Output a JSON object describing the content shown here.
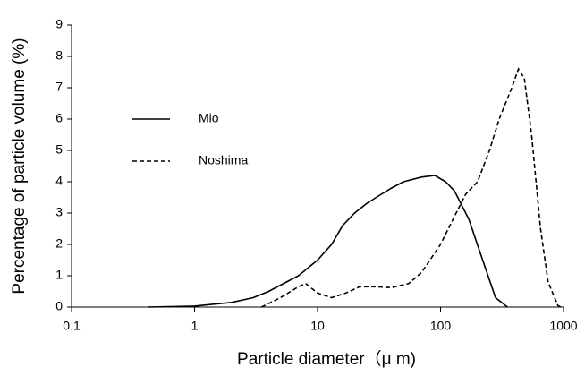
{
  "chart_data": {
    "type": "line",
    "x_label": "Particle diameter（μ m)",
    "y_label": "Percentage of particle volume (%)",
    "xlim": [
      0.1,
      1000
    ],
    "xticks": [
      0.1,
      1,
      10,
      100,
      1000
    ],
    "x_log": true,
    "ylim": [
      0,
      9
    ],
    "yticks": [
      0,
      1,
      2,
      3,
      4,
      5,
      6,
      7,
      8,
      9
    ],
    "grid": false,
    "legend": "upper left",
    "series": [
      {
        "name": "Mio",
        "color": "#000000",
        "line_style": "solid",
        "x": [
          0.42,
          1,
          2,
          3,
          4,
          5,
          7,
          10,
          13,
          16,
          20,
          25,
          30,
          40,
          50,
          70,
          90,
          110,
          130,
          170,
          220,
          280,
          350
        ],
        "values": [
          0,
          0.03,
          0.15,
          0.3,
          0.5,
          0.7,
          1.0,
          1.5,
          2.0,
          2.6,
          3.0,
          3.3,
          3.5,
          3.8,
          4.0,
          4.15,
          4.2,
          4.0,
          3.7,
          2.8,
          1.5,
          0.3,
          0
        ]
      },
      {
        "name": "Noshima",
        "color": "#000000",
        "line_style": "dashed",
        "x": [
          3.5,
          5,
          7,
          8,
          10,
          13,
          17,
          22,
          30,
          40,
          55,
          70,
          100,
          130,
          160,
          200,
          250,
          300,
          380,
          430,
          480,
          550,
          650,
          750,
          900,
          950
        ],
        "values": [
          0,
          0.3,
          0.65,
          0.75,
          0.45,
          0.3,
          0.45,
          0.65,
          0.65,
          0.62,
          0.75,
          1.1,
          2.0,
          2.9,
          3.6,
          4.0,
          5.0,
          6.0,
          7.0,
          7.6,
          7.3,
          5.5,
          2.5,
          0.8,
          0.05,
          0
        ]
      }
    ]
  }
}
